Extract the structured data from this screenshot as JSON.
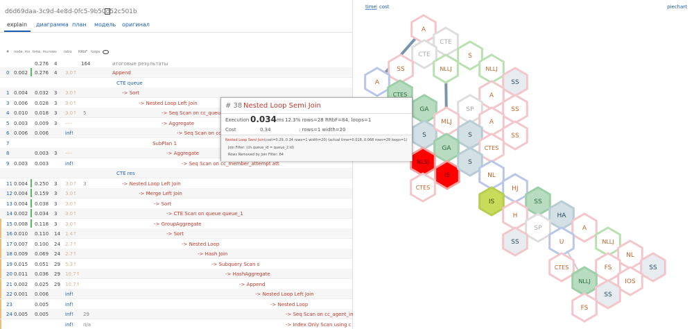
{
  "id": "d6d69daa-3c9d-4e8d-0fc5-9b50d52c501b",
  "tabs": [
    "explain",
    "диаграмма",
    "план",
    "модель",
    "оригинал"
  ],
  "table": {
    "columns": [
      "#",
      "node, ms",
      "time, ms",
      "rows",
      "ratio",
      "RRbF",
      "loops"
    ],
    "summary": {
      "total": "0.276",
      "rows": "4",
      "rrbf": "164",
      "node": "итоговые результаты"
    },
    "rows": [
      {
        "n": "0",
        "self": "0.002",
        "total": "0.276",
        "rows": "4",
        "ratio": "3.0↑",
        "node": "Append"
      },
      {
        "node": "CTE queue"
      },
      {
        "n": "1",
        "self": "0.004",
        "total": "0.032",
        "rows": "3",
        "ratio": "3.0↑",
        "node": "->  Sort"
      },
      {
        "n": "3",
        "self": "0.006",
        "total": "0.028",
        "rows": "3",
        "ratio": "3.0↑",
        "node": "->  Nested Loop Left Join"
      },
      {
        "n": "4",
        "self": "0.010",
        "total": "0.018",
        "rows": "3",
        "ratio": "3.0↑",
        "rrbf": "5",
        "node": "->  Seq Scan on cc_queue q"
      },
      {
        "n": "5",
        "self": "0.003",
        "total": "0.009",
        "rows": "3",
        "ratio": "----",
        "node": "->  Aggregate"
      },
      {
        "n": "6",
        "self": "0.006",
        "total": "0.006",
        "ratio": "inf!",
        "node": "->  Seq Scan on cc_member"
      },
      {
        "n": "7",
        "node": "SubPlan 1"
      },
      {
        "n": "8",
        "total": "0.003",
        "rows": "3",
        "ratio": "----",
        "node": "->  Aggregate"
      },
      {
        "n": "9",
        "self": "0.003",
        "total": "0.003",
        "ratio": "inf!",
        "node": "->  Seq Scan on cc_member_attempt att"
      },
      {
        "node": "CTE res"
      },
      {
        "n": "11",
        "self": "0.004",
        "total": "0.250",
        "rows": "3",
        "ratio": "3.0↑",
        "rrbf": "3",
        "node": "->  Nested Loop Left Join"
      },
      {
        "n": "12",
        "self": "0.004",
        "total": "0.159",
        "rows": "3",
        "ratio": "3.0↑",
        "node": "->  Merge Left Join"
      },
      {
        "n": "13",
        "self": "0.004",
        "total": "0.038",
        "rows": "3",
        "ratio": "3.0↑",
        "node": "->  Sort"
      },
      {
        "n": "14",
        "self": "0.002",
        "total": "0.034",
        "rows": "3",
        "ratio": "3.0↑",
        "node": "->  CTE Scan on queue queue_1"
      },
      {
        "n": "15",
        "self": "0.008",
        "total": "0.118",
        "rows": "3",
        "ratio": "3.0↑",
        "node": "->  GroupAggregate"
      },
      {
        "n": "16",
        "self": "0.010",
        "total": "0.110",
        "rows": "14",
        "ratio": "1.4↑",
        "node": "->  Sort"
      },
      {
        "n": "17",
        "self": "0.007",
        "total": "0.100",
        "rows": "24",
        "ratio": "2.7↑",
        "node": "->  Nested Loop"
      },
      {
        "n": "18",
        "self": "0.009",
        "total": "0.069",
        "rows": "24",
        "ratio": "2.7↑",
        "node": "->  Hash Join"
      },
      {
        "n": "19",
        "self": "0.015",
        "total": "0.051",
        "rows": "29",
        "ratio": "5.3↑",
        "node": "->  Subquery Scan s"
      },
      {
        "n": "20",
        "self": "0.011",
        "total": "0.036",
        "rows": "29",
        "ratio": "10.7↑",
        "node": "->  HashAggregate"
      },
      {
        "n": "21",
        "self": "0.002",
        "total": "0.025",
        "rows": "29",
        "ratio": "10.7↑",
        "node": "->  Append"
      },
      {
        "n": "22",
        "self": "0.001",
        "total": "0.006",
        "ratio": "inf!",
        "node": "->  Nested Loop Left Join"
      },
      {
        "n": "23",
        "total": "0.005",
        "ratio": "inf!",
        "node": "->  Nested Loop"
      },
      {
        "n": "24",
        "self": "0.005",
        "total": "0.005",
        "ratio": "inf!",
        "rrbf": "29",
        "node": "->  Seq Scan on cc_agent_in"
      },
      {
        "ratio": "inf!",
        "rrbf": "n/a",
        "node": "->  Index Only Scan using c"
      }
    ]
  },
  "tooltip": {
    "num": "# 38",
    "title": "Nested Loop Semi Join",
    "exec_label": "Execution",
    "exec": "0.034",
    "exec_unit": "ms",
    "exec_pct": "12.3%",
    "exec_rest": ": rows=28 RRbF=84, loops=1",
    "cost_label": "Cost",
    "cost": "0.34",
    "cost_rest": ": rows=1 width=20",
    "detail_node": "Nested Loop Semi Join",
    "detail": "(cost=0.29..0.34 rows=1 width=20) (actual time=0.018..0.068 rows=28 loops=1)",
    "filter": "Join Filter: (ch.queue_id = queue_2.id)",
    "removed": "Rows Removed by Join Filter: 84"
  },
  "graph": {
    "modes": [
      "time",
      "cost"
    ],
    "link": "piechart",
    "nodes": [
      "A",
      "CTE",
      "CTE",
      "S",
      "SS",
      "NLLJ",
      "NLLJ",
      "A",
      "CTES",
      "SS",
      "A",
      "GA",
      "SP",
      "SS",
      "S",
      "MLJ",
      "A",
      "S",
      "SS",
      "GA",
      "CTES",
      "NLSJ",
      "IS",
      "S",
      "CTES",
      "NL",
      "HJ",
      "IS",
      "SS",
      "H",
      "HA",
      "SP",
      "A",
      "SS",
      "U",
      "NLLJ",
      "NL",
      "CTES",
      "FS",
      "SS",
      "NLLJ",
      "IOS",
      "SS",
      "FS"
    ]
  }
}
